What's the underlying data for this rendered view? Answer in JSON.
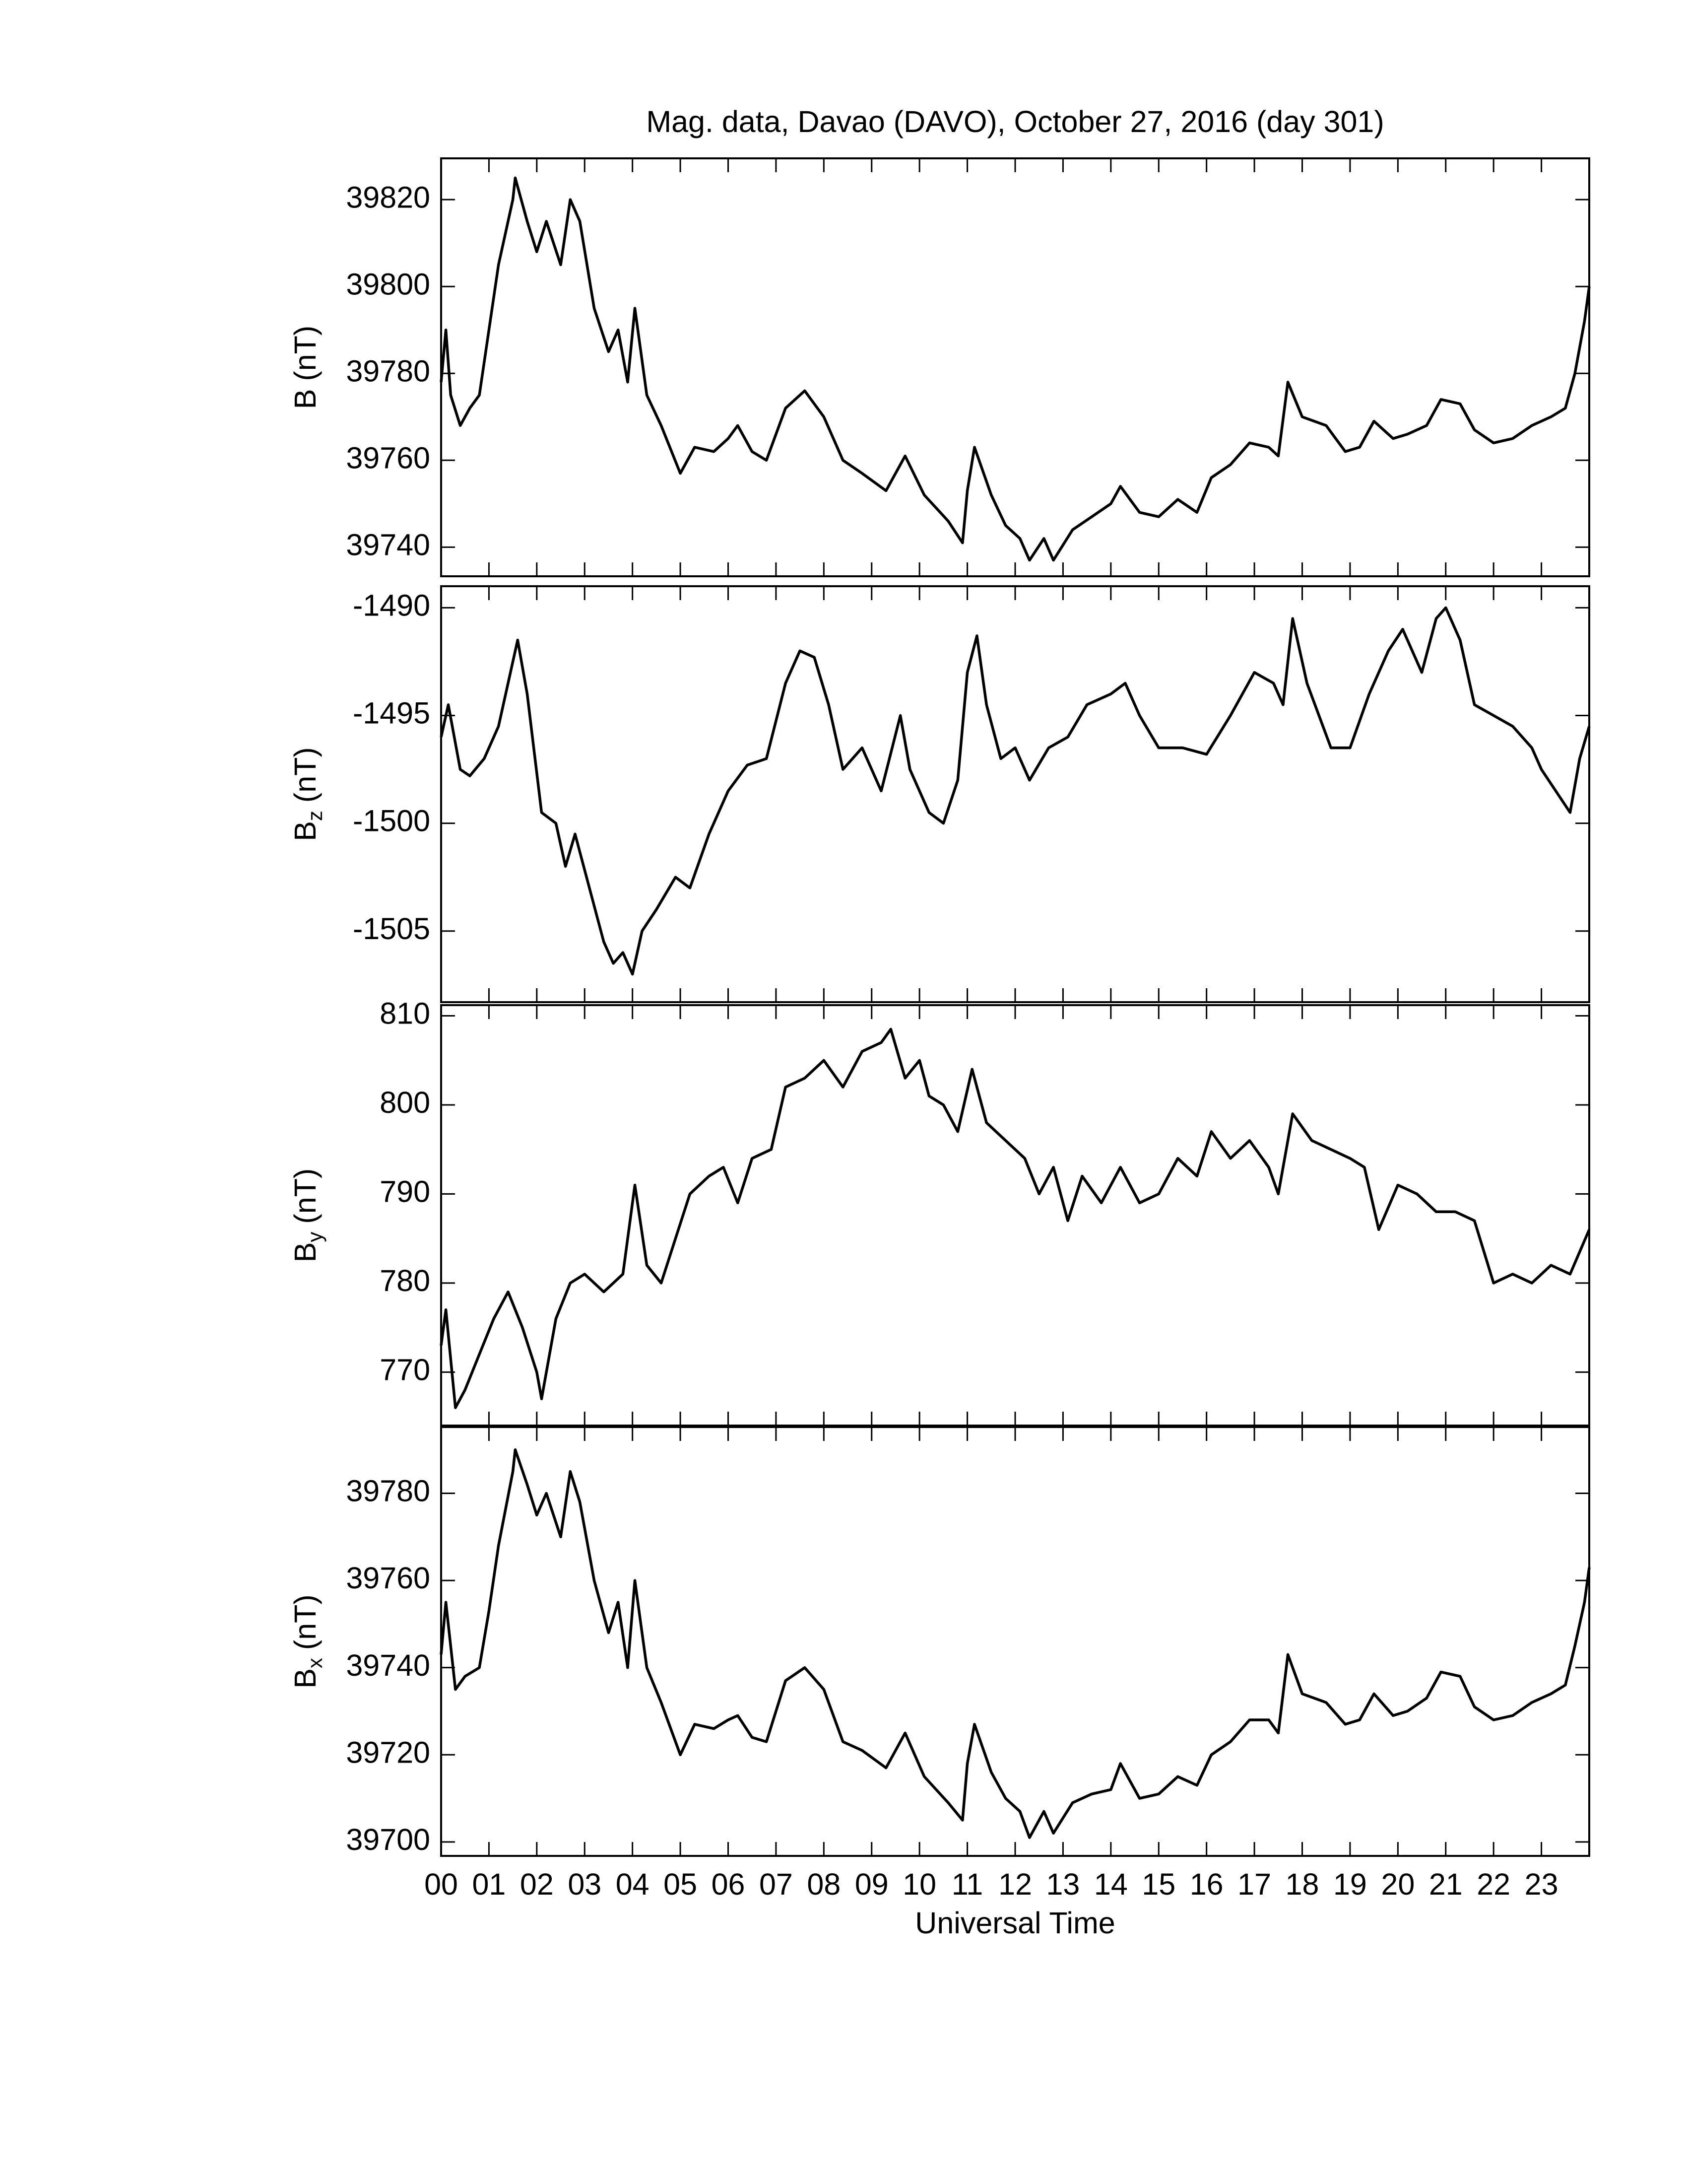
{
  "chart_data": [
    {
      "type": "line",
      "title": "Mag. data, Davao (DAVO), October 27, 2016 (day 301)",
      "ylabel": {
        "main": "B",
        "unit": "(nT)"
      },
      "xlim": [
        0,
        24
      ],
      "ylim": [
        39733.3,
        39829.5
      ],
      "yticks": [
        39740,
        39760,
        39780,
        39800,
        39820
      ],
      "x": [
        0,
        0.1,
        0.2,
        0.4,
        0.6,
        0.8,
        1.0,
        1.2,
        1.5,
        1.55,
        1.8,
        2.0,
        2.2,
        2.5,
        2.7,
        2.9,
        3.2,
        3.5,
        3.7,
        3.9,
        4.05,
        4.3,
        4.6,
        5.0,
        5.3,
        5.7,
        6.0,
        6.2,
        6.5,
        6.8,
        7.2,
        7.6,
        8.0,
        8.4,
        8.8,
        9.3,
        9.7,
        10.1,
        10.6,
        10.9,
        11.0,
        11.15,
        11.5,
        11.8,
        12.1,
        12.3,
        12.6,
        12.8,
        13.2,
        13.6,
        14.0,
        14.2,
        14.6,
        15.0,
        15.4,
        15.8,
        16.1,
        16.5,
        16.9,
        17.3,
        17.5,
        17.7,
        18.0,
        18.5,
        18.9,
        19.2,
        19.5,
        19.9,
        20.2,
        20.6,
        20.9,
        21.3,
        21.6,
        22.0,
        22.4,
        22.8,
        23.2,
        23.5,
        23.7,
        23.9,
        24
      ],
      "values": [
        39778,
        39790,
        39775,
        39768,
        39772,
        39775,
        39790,
        39805,
        39820,
        39825,
        39815,
        39808,
        39815,
        39805,
        39820,
        39815,
        39795,
        39785,
        39790,
        39778,
        39795,
        39775,
        39768,
        39757,
        39763,
        39762,
        39765,
        39768,
        39762,
        39760,
        39772,
        39776,
        39770,
        39760,
        39757,
        39753,
        39761,
        39752,
        39746,
        39741,
        39753,
        39763,
        39752,
        39745,
        39742,
        39737,
        39742,
        39737,
        39744,
        39747,
        39750,
        39754,
        39748,
        39747,
        39751,
        39748,
        39756,
        39759,
        39764,
        39763,
        39761,
        39778,
        39770,
        39768,
        39762,
        39763,
        39769,
        39765,
        39766,
        39768,
        39774,
        39773,
        39767,
        39764,
        39765,
        39768,
        39770,
        39772,
        39780,
        39792,
        39800
      ],
      "color": "#000000"
    },
    {
      "type": "line",
      "ylabel": {
        "main": "B",
        "sub": "z",
        "unit": "(nT)"
      },
      "xlim": [
        0,
        24
      ],
      "ylim": [
        -1508.3,
        -1489
      ],
      "yticks": [
        -1505,
        -1500,
        -1495,
        -1490
      ],
      "x": [
        0,
        0.15,
        0.4,
        0.6,
        0.9,
        1.2,
        1.5,
        1.6,
        1.8,
        2.1,
        2.4,
        2.6,
        2.8,
        3.1,
        3.4,
        3.6,
        3.8,
        4.0,
        4.2,
        4.5,
        4.9,
        5.2,
        5.6,
        6.0,
        6.4,
        6.8,
        7.2,
        7.5,
        7.8,
        8.1,
        8.4,
        8.8,
        9.2,
        9.6,
        9.8,
        10.2,
        10.5,
        10.8,
        11.0,
        11.2,
        11.4,
        11.7,
        12.0,
        12.3,
        12.7,
        13.1,
        13.5,
        14.0,
        14.3,
        14.6,
        15.0,
        15.5,
        16.0,
        16.5,
        17.0,
        17.4,
        17.6,
        17.8,
        18.1,
        18.6,
        19.0,
        19.4,
        19.8,
        20.1,
        20.5,
        20.8,
        21.0,
        21.3,
        21.6,
        22.0,
        22.4,
        22.8,
        23.0,
        23.3,
        23.6,
        23.8,
        24
      ],
      "values": [
        -1496,
        -1494.5,
        -1497.5,
        -1497.8,
        -1497,
        -1495.5,
        -1492.5,
        -1491.5,
        -1494,
        -1499.5,
        -1500,
        -1502,
        -1500.5,
        -1503,
        -1505.5,
        -1506.5,
        -1506,
        -1507,
        -1505,
        -1504,
        -1502.5,
        -1503,
        -1500.5,
        -1498.5,
        -1497.3,
        -1497,
        -1493.5,
        -1492,
        -1492.3,
        -1494.5,
        -1497.5,
        -1496.5,
        -1498.5,
        -1495,
        -1497.5,
        -1499.5,
        -1500,
        -1498,
        -1493,
        -1491.3,
        -1494.5,
        -1497,
        -1496.5,
        -1498,
        -1496.5,
        -1496,
        -1494.5,
        -1494,
        -1493.5,
        -1495,
        -1496.5,
        -1496.5,
        -1496.8,
        -1495,
        -1493,
        -1493.5,
        -1494.5,
        -1490.5,
        -1493.5,
        -1496.5,
        -1496.5,
        -1494,
        -1492,
        -1491,
        -1493,
        -1490.5,
        -1490,
        -1491.5,
        -1494.5,
        -1495,
        -1495.5,
        -1496.5,
        -1497.5,
        -1498.5,
        -1499.5,
        -1497,
        -1495.5
      ],
      "color": "#000000"
    },
    {
      "type": "line",
      "ylabel": {
        "main": "B",
        "sub": "y",
        "unit": "(nT)"
      },
      "xlim": [
        0,
        24
      ],
      "ylim": [
        764,
        811.2
      ],
      "yticks": [
        770,
        780,
        790,
        800,
        810
      ],
      "x": [
        0,
        0.1,
        0.3,
        0.5,
        0.8,
        1.1,
        1.4,
        1.7,
        2.0,
        2.1,
        2.4,
        2.7,
        3.0,
        3.4,
        3.8,
        4.05,
        4.3,
        4.6,
        4.9,
        5.2,
        5.6,
        5.9,
        6.2,
        6.5,
        6.9,
        7.2,
        7.6,
        8.0,
        8.4,
        8.8,
        9.2,
        9.4,
        9.7,
        10.0,
        10.2,
        10.5,
        10.8,
        11.1,
        11.4,
        11.8,
        12.2,
        12.5,
        12.8,
        13.1,
        13.4,
        13.8,
        14.2,
        14.6,
        15.0,
        15.4,
        15.8,
        16.1,
        16.5,
        16.9,
        17.3,
        17.5,
        17.8,
        18.2,
        18.6,
        19.0,
        19.3,
        19.6,
        20.0,
        20.4,
        20.8,
        21.2,
        21.6,
        22.0,
        22.4,
        22.8,
        23.2,
        23.6,
        24
      ],
      "values": [
        773,
        777,
        766,
        768,
        772,
        776,
        779,
        775,
        770,
        767,
        776,
        780,
        781,
        779,
        781,
        791,
        782,
        780,
        785,
        790,
        792,
        793,
        789,
        794,
        795,
        802,
        803,
        805,
        802,
        806,
        807,
        808.5,
        803,
        805,
        801,
        800,
        797,
        804,
        798,
        796,
        794,
        790,
        793,
        787,
        792,
        789,
        793,
        789,
        790,
        794,
        792,
        797,
        794,
        796,
        793,
        790,
        799,
        796,
        795,
        794,
        793,
        786,
        791,
        790,
        788,
        788,
        787,
        780,
        781,
        780,
        782,
        781,
        786
      ],
      "color": "#000000"
    },
    {
      "type": "line",
      "ylabel": {
        "main": "B",
        "sub": "x",
        "unit": "(nT)"
      },
      "xlabel": "Universal Time",
      "xlim": [
        0,
        24
      ],
      "ylim": [
        39696.8,
        39795.2
      ],
      "yticks": [
        39700,
        39720,
        39740,
        39760,
        39780
      ],
      "xticks": [
        {
          "value": 0,
          "label": "00"
        },
        {
          "value": 1,
          "label": "01"
        },
        {
          "value": 2,
          "label": "02"
        },
        {
          "value": 3,
          "label": "03"
        },
        {
          "value": 4,
          "label": "04"
        },
        {
          "value": 5,
          "label": "05"
        },
        {
          "value": 6,
          "label": "06"
        },
        {
          "value": 7,
          "label": "07"
        },
        {
          "value": 8,
          "label": "08"
        },
        {
          "value": 9,
          "label": "09"
        },
        10,
        11,
        12,
        13,
        14,
        15,
        16,
        17,
        18,
        19,
        20,
        21,
        22,
        23
      ],
      "x": [
        0,
        0.1,
        0.3,
        0.5,
        0.8,
        1.0,
        1.2,
        1.5,
        1.55,
        1.8,
        2.0,
        2.2,
        2.5,
        2.7,
        2.9,
        3.2,
        3.5,
        3.7,
        3.9,
        4.05,
        4.3,
        4.6,
        5.0,
        5.3,
        5.7,
        6.0,
        6.2,
        6.5,
        6.8,
        7.2,
        7.6,
        8.0,
        8.4,
        8.8,
        9.3,
        9.7,
        10.1,
        10.6,
        10.9,
        11.0,
        11.15,
        11.5,
        11.8,
        12.1,
        12.3,
        12.6,
        12.8,
        13.2,
        13.6,
        14.0,
        14.2,
        14.6,
        15.0,
        15.4,
        15.8,
        16.1,
        16.5,
        16.9,
        17.3,
        17.5,
        17.7,
        18.0,
        18.5,
        18.9,
        19.2,
        19.5,
        19.9,
        20.2,
        20.6,
        20.9,
        21.3,
        21.6,
        22.0,
        22.4,
        22.8,
        23.2,
        23.5,
        23.7,
        23.9,
        24
      ],
      "values": [
        39743,
        39755,
        39735,
        39738,
        39740,
        39753,
        39768,
        39785,
        39790,
        39782,
        39775,
        39780,
        39770,
        39785,
        39778,
        39760,
        39748,
        39755,
        39740,
        39760,
        39740,
        39732,
        39720,
        39727,
        39726,
        39728,
        39729,
        39724,
        39723,
        39737,
        39740,
        39735,
        39723,
        39721,
        39717,
        39725,
        39715,
        39709,
        39705,
        39718,
        39727,
        39716,
        39710,
        39707,
        39701,
        39707,
        39702,
        39709,
        39711,
        39712,
        39718,
        39710,
        39711,
        39715,
        39713,
        39720,
        39723,
        39728,
        39728,
        39725,
        39743,
        39734,
        39732,
        39727,
        39728,
        39734,
        39729,
        39730,
        39733,
        39739,
        39738,
        39731,
        39728,
        39729,
        39732,
        39734,
        39736,
        39745,
        39755,
        39763
      ],
      "color": "#000000"
    }
  ]
}
